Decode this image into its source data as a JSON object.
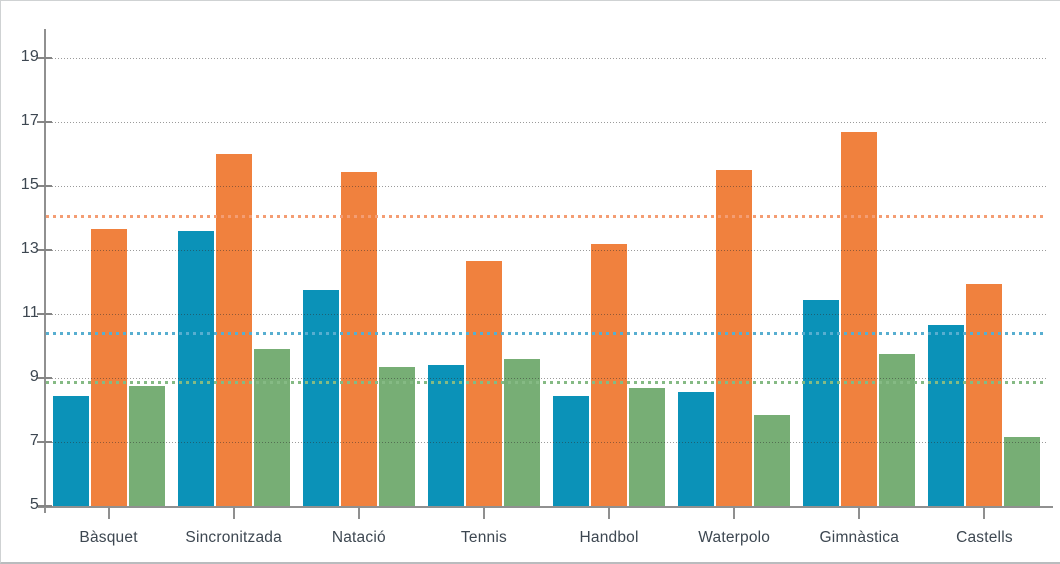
{
  "chart_data": {
    "type": "bar",
    "title": "",
    "xlabel": "",
    "ylabel": "",
    "categories": [
      "Bàsquet",
      "Sincronitzada",
      "Natació",
      "Tennis",
      "Handbol",
      "Waterpolo",
      "Gimnàstica",
      "Castells"
    ],
    "series": [
      {
        "name": "blue",
        "color": "#0b92b8",
        "values": [
          8.45,
          13.6,
          11.75,
          9.4,
          8.45,
          8.55,
          11.45,
          10.65
        ]
      },
      {
        "name": "orange",
        "color": "#f0813e",
        "values": [
          13.65,
          16.0,
          15.45,
          12.65,
          13.2,
          15.5,
          16.7,
          11.95
        ]
      },
      {
        "name": "green",
        "color": "#77ae75",
        "values": [
          8.75,
          9.9,
          9.35,
          9.6,
          8.7,
          7.85,
          9.75,
          7.15
        ]
      }
    ],
    "reference_lines": [
      {
        "series": "orange",
        "value": 14.05,
        "color": "#f49d73"
      },
      {
        "series": "blue",
        "value": 10.4,
        "color": "#57aed0"
      },
      {
        "series": "green",
        "value": 8.85,
        "color": "#85ba84"
      }
    ],
    "yticks": [
      5,
      7,
      9,
      11,
      13,
      15,
      17,
      19
    ],
    "ylim": [
      5,
      19.9
    ],
    "grid": true,
    "grid_style": "dotted",
    "legend": "none",
    "bar_baseline_value": 5
  },
  "style": {
    "axis_text_color": "#3d4751",
    "axis_line_color": "#909090",
    "grid_dot_color": "rgba(45,45,45,0.48)",
    "frame_border_color": "#cfd2d3",
    "background": "#ffffff"
  }
}
